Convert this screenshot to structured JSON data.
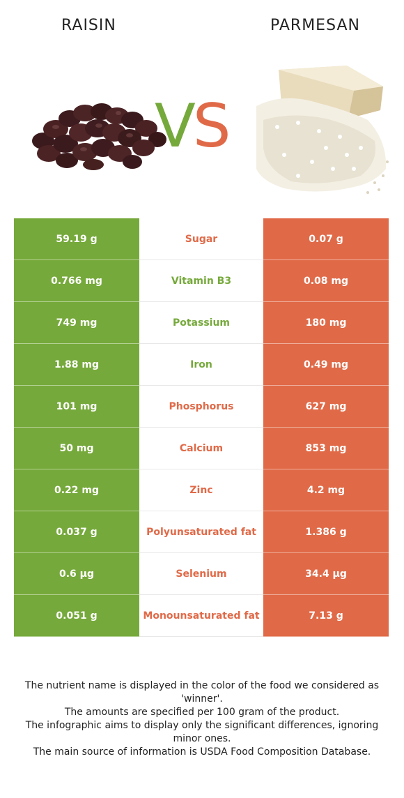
{
  "foods": {
    "left": "RAISIN",
    "right": "PARMESAN"
  },
  "vs": {
    "v": "V",
    "s": "S"
  },
  "colors": {
    "left": "#76a93b",
    "right": "#e06a48"
  },
  "rows": [
    {
      "left": "59.19 g",
      "nutrient": "Sugar",
      "right": "0.07 g",
      "winner": "right"
    },
    {
      "left": "0.766 mg",
      "nutrient": "Vitamin B3",
      "right": "0.08 mg",
      "winner": "left"
    },
    {
      "left": "749 mg",
      "nutrient": "Potassium",
      "right": "180 mg",
      "winner": "left"
    },
    {
      "left": "1.88 mg",
      "nutrient": "Iron",
      "right": "0.49 mg",
      "winner": "left"
    },
    {
      "left": "101 mg",
      "nutrient": "Phosphorus",
      "right": "627 mg",
      "winner": "right"
    },
    {
      "left": "50 mg",
      "nutrient": "Calcium",
      "right": "853 mg",
      "winner": "right"
    },
    {
      "left": "0.22 mg",
      "nutrient": "Zinc",
      "right": "4.2 mg",
      "winner": "right"
    },
    {
      "left": "0.037 g",
      "nutrient": "Polyunsaturated fat",
      "right": "1.386 g",
      "winner": "right"
    },
    {
      "left": "0.6 µg",
      "nutrient": "Selenium",
      "right": "34.4 µg",
      "winner": "right"
    },
    {
      "left": "0.051 g",
      "nutrient": "Monounsaturated fat",
      "right": "7.13 g",
      "winner": "right"
    }
  ],
  "notes": [
    "The nutrient name is displayed in the color of the food we considered as 'winner'.",
    "The amounts are specified per 100 gram of the product.",
    "The infographic aims to display only the significant differences, ignoring minor ones.",
    "The main source of information is USDA Food Composition Database."
  ]
}
